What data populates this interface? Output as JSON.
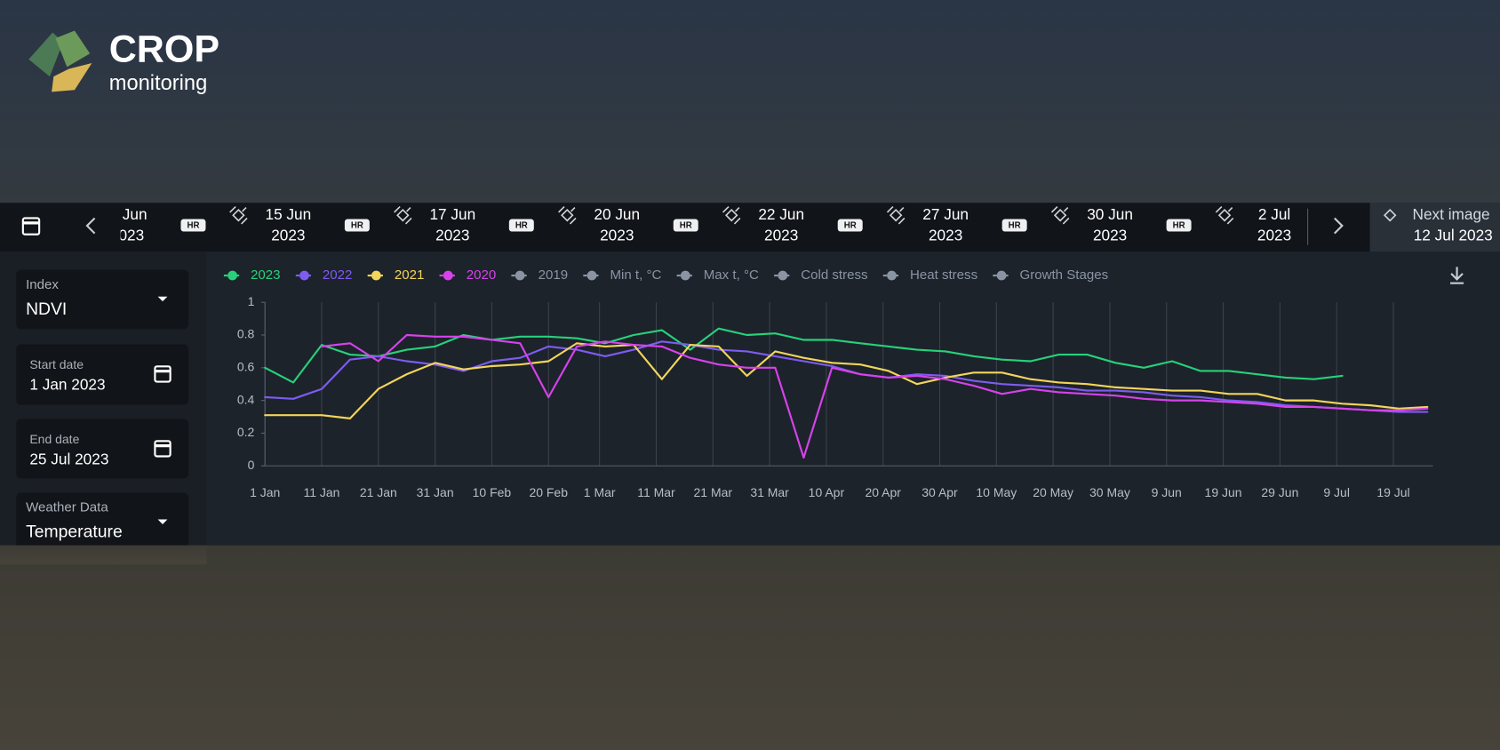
{
  "logo": {
    "title": "CROP",
    "subtitle": "monitoring"
  },
  "timeline": {
    "items": [
      {
        "date": "Jun",
        "year": "023",
        "badge": "HR"
      },
      {
        "date": "15 Jun",
        "year": "2023",
        "badge": "HR"
      },
      {
        "date": "17 Jun",
        "year": "2023",
        "badge": "HR"
      },
      {
        "date": "20 Jun",
        "year": "2023",
        "badge": "HR"
      },
      {
        "date": "22 Jun",
        "year": "2023",
        "badge": "HR"
      },
      {
        "date": "27 Jun",
        "year": "2023",
        "badge": "HR"
      },
      {
        "date": "30 Jun",
        "year": "2023",
        "badge": "HR"
      },
      {
        "date": "2 Jul",
        "year": "2023"
      }
    ],
    "next": {
      "label": "Next image",
      "date": "12 Jul 2023"
    }
  },
  "sidebar": {
    "fields": [
      {
        "label": "Index",
        "value": "NDVI"
      },
      {
        "label": "Start date",
        "value": "1 Jan 2023"
      },
      {
        "label": "End date",
        "value": "25 Jul 2023"
      },
      {
        "label": "Weather Data",
        "value": "Temperature"
      }
    ]
  },
  "chart_data": {
    "type": "line",
    "x": [
      0,
      5,
      10,
      15,
      20,
      25,
      30,
      35,
      40,
      45,
      50,
      55,
      60,
      65,
      70,
      75,
      80,
      85,
      90,
      95,
      100,
      105,
      110,
      115,
      120,
      125,
      130,
      135,
      140,
      145,
      150,
      155,
      160,
      165,
      170,
      175,
      180,
      185,
      190,
      195,
      200,
      205
    ],
    "xlim": [
      0,
      206
    ],
    "xticks": [
      {
        "value": 0,
        "label": "1 Jan"
      },
      {
        "value": 10,
        "label": "11 Jan"
      },
      {
        "value": 20,
        "label": "21 Jan"
      },
      {
        "value": 30,
        "label": "31 Jan"
      },
      {
        "value": 40,
        "label": "10 Feb"
      },
      {
        "value": 50,
        "label": "20 Feb"
      },
      {
        "value": 59,
        "label": "1 Mar"
      },
      {
        "value": 69,
        "label": "11 Mar"
      },
      {
        "value": 79,
        "label": "21 Mar"
      },
      {
        "value": 89,
        "label": "31 Mar"
      },
      {
        "value": 99,
        "label": "10 Apr"
      },
      {
        "value": 109,
        "label": "20 Apr"
      },
      {
        "value": 119,
        "label": "30 Apr"
      },
      {
        "value": 129,
        "label": "10 May"
      },
      {
        "value": 139,
        "label": "20 May"
      },
      {
        "value": 149,
        "label": "30 May"
      },
      {
        "value": 159,
        "label": "9 Jun"
      },
      {
        "value": 169,
        "label": "19 Jun"
      },
      {
        "value": 179,
        "label": "29 Jun"
      },
      {
        "value": 189,
        "label": "9 Jul"
      },
      {
        "value": 199,
        "label": "19 Jul"
      }
    ],
    "ylim": [
      0,
      1
    ],
    "yticks": [
      0,
      0.2,
      0.4,
      0.6,
      0.8,
      1
    ],
    "grid": true,
    "series": [
      {
        "name": "2023",
        "color": "#27d17a",
        "values": [
          0.6,
          0.51,
          0.74,
          0.68,
          0.67,
          0.71,
          0.73,
          0.8,
          0.77,
          0.79,
          0.79,
          0.78,
          0.75,
          0.8,
          0.83,
          0.71,
          0.84,
          0.8,
          0.81,
          0.77,
          0.77,
          0.75,
          0.73,
          0.71,
          0.7,
          0.67,
          0.65,
          0.64,
          0.68,
          0.68,
          0.63,
          0.6,
          0.64,
          0.58,
          0.58,
          0.56,
          0.54,
          0.53,
          0.55,
          null,
          null,
          null
        ]
      },
      {
        "name": "2022",
        "color": "#7d5cf0",
        "values": [
          0.42,
          0.41,
          0.47,
          0.65,
          0.67,
          0.64,
          0.62,
          0.58,
          0.64,
          0.66,
          0.73,
          0.71,
          0.67,
          0.71,
          0.76,
          0.74,
          0.71,
          0.7,
          0.67,
          0.64,
          0.61,
          0.56,
          0.54,
          0.56,
          0.55,
          0.52,
          0.5,
          0.49,
          0.48,
          0.46,
          0.46,
          0.45,
          0.43,
          0.42,
          0.4,
          0.39,
          0.37,
          0.36,
          0.35,
          0.34,
          0.33,
          0.33
        ]
      },
      {
        "name": "2021",
        "color": "#f2d55a",
        "values": [
          0.31,
          0.31,
          0.31,
          0.29,
          0.47,
          0.56,
          0.63,
          0.59,
          0.61,
          0.62,
          0.64,
          0.75,
          0.73,
          0.74,
          0.53,
          0.74,
          0.73,
          0.55,
          0.7,
          0.66,
          0.63,
          0.62,
          0.58,
          0.5,
          0.54,
          0.57,
          0.57,
          0.53,
          0.51,
          0.5,
          0.48,
          0.47,
          0.46,
          0.46,
          0.44,
          0.44,
          0.4,
          0.4,
          0.38,
          0.37,
          0.35,
          0.36
        ]
      },
      {
        "name": "2020",
        "color": "#d742ec",
        "values": [
          null,
          null,
          0.73,
          0.75,
          0.64,
          0.8,
          0.79,
          0.79,
          0.77,
          0.75,
          0.42,
          0.73,
          0.76,
          0.74,
          0.73,
          0.66,
          0.62,
          0.6,
          0.6,
          0.05,
          0.6,
          0.56,
          0.54,
          0.55,
          0.53,
          0.49,
          0.44,
          0.47,
          0.45,
          0.44,
          0.43,
          0.41,
          0.4,
          0.4,
          0.39,
          0.38,
          0.36,
          0.36,
          0.35,
          0.34,
          0.34,
          0.35
        ]
      }
    ],
    "inactive_legend": [
      "2019",
      "Min t, °C",
      "Max t, °C",
      "Cold stress",
      "Heat stress",
      "Growth Stages"
    ],
    "inactive_color": "#8a94a3"
  }
}
